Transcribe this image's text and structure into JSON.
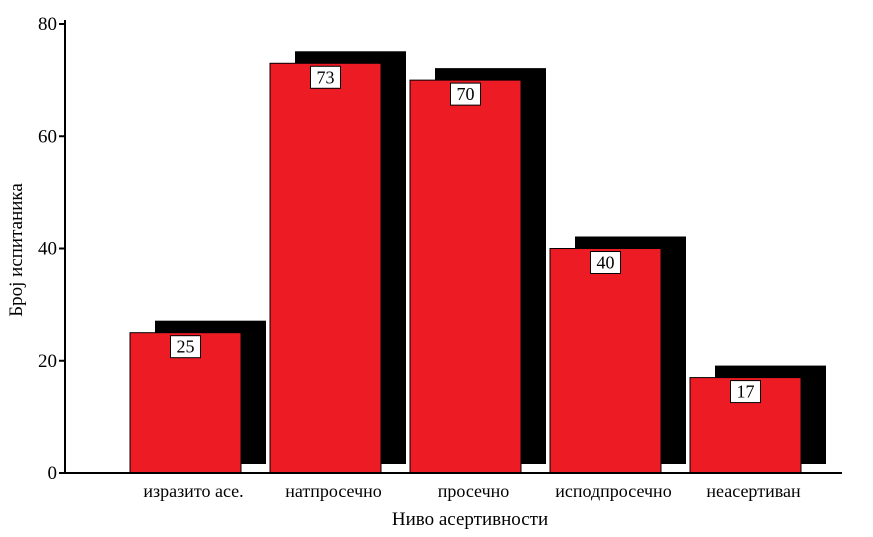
{
  "chart_data": {
    "type": "bar",
    "categories": [
      "изразито асе.",
      "натпросечно",
      "просечно",
      "исподпросечно",
      "неасертиван"
    ],
    "values": [
      25,
      73,
      70,
      40,
      17
    ],
    "data_labels": [
      "25",
      "73",
      "70",
      "40",
      "17"
    ],
    "title": "",
    "xlabel": "Ниво асертивности",
    "ylabel": "Број испитаника",
    "ylim": [
      0,
      80
    ],
    "yticks": [
      0,
      20,
      40,
      60,
      80
    ],
    "ytick_labels": [
      "0",
      "20",
      "40",
      "60",
      "80"
    ],
    "grid": false,
    "legend": "none",
    "style": "3d-shadow",
    "colors": {
      "bar": "#ed1c24",
      "shadow": "#000000",
      "axis": "#000000",
      "label_box": "#ffffff"
    }
  }
}
